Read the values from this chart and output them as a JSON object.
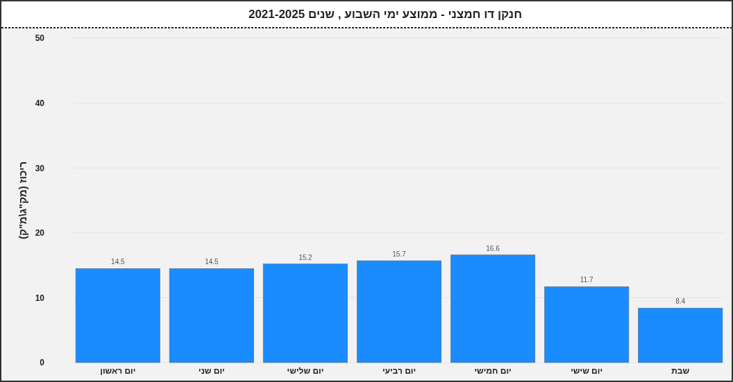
{
  "chart_data": {
    "type": "bar",
    "title": "חנקן דו חמצני - ממוצע ימי השבוע , שנים 2021-2025",
    "ylabel": "ריכוז (מק\"ג\\מ\"ק)",
    "categories": [
      "יום ראשון",
      "יום שני",
      "יום שלישי",
      "יום רביעי",
      "יום חמישי",
      "יום שישי",
      "שבת"
    ],
    "values": [
      14.5,
      14.5,
      15.2,
      15.7,
      16.6,
      11.7,
      8.4
    ],
    "color": "#1a8cff",
    "ylim": [
      0,
      50
    ],
    "yticks": [
      0,
      10,
      20,
      30,
      40,
      50
    ],
    "grid": "y",
    "data_labels": true
  }
}
